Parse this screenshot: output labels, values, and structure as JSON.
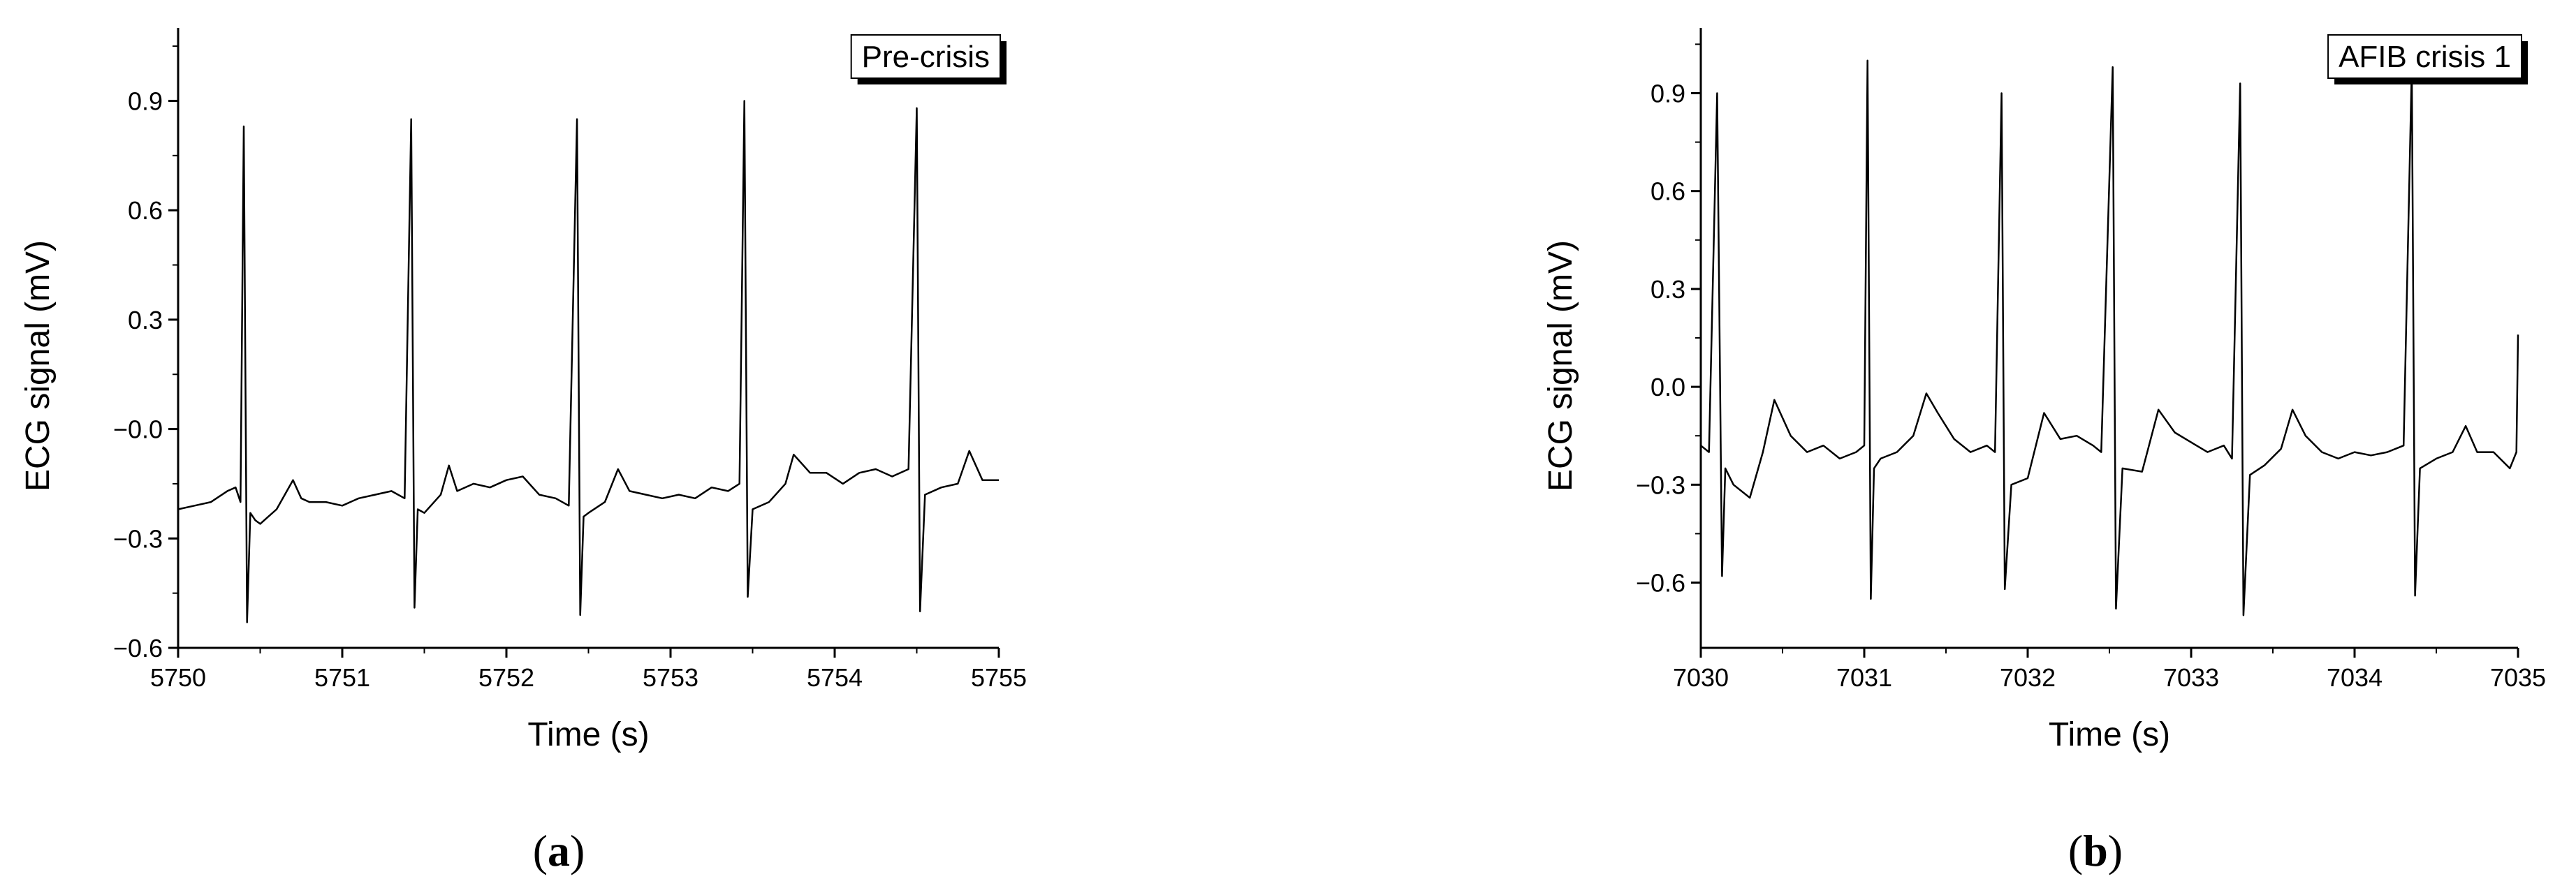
{
  "chart_data": [
    {
      "type": "line",
      "panel_label": "a",
      "legend": "Pre-crisis",
      "xlabel": "Time (s)",
      "ylabel": "ECG signal (mV)",
      "xlim": [
        5750,
        5755
      ],
      "ylim": [
        -0.6,
        1.1
      ],
      "xticks": [
        5750,
        5751,
        5752,
        5753,
        5754,
        5755
      ],
      "yticks": [
        -0.6,
        -0.3,
        0.0,
        0.3,
        0.6,
        0.9
      ],
      "ytick_labels": [
        "−0.6",
        "−0.3",
        "−0.0",
        "0.3",
        "0.6",
        "0.9"
      ],
      "xtick_labels": [
        "5750",
        "5751",
        "5752",
        "5753",
        "5754",
        "5755"
      ],
      "series": [
        {
          "x": [
            5750.0,
            5750.1,
            5750.2,
            5750.3,
            5750.35,
            5750.38,
            5750.4,
            5750.42,
            5750.44,
            5750.47,
            5750.5,
            5750.6,
            5750.7,
            5750.75,
            5750.8,
            5750.9,
            5751.0,
            5751.1,
            5751.2,
            5751.3,
            5751.38,
            5751.42,
            5751.44,
            5751.46,
            5751.5,
            5751.6,
            5751.65,
            5751.7,
            5751.8,
            5751.9,
            5752.0,
            5752.1,
            5752.2,
            5752.3,
            5752.38,
            5752.43,
            5752.45,
            5752.47,
            5752.5,
            5752.6,
            5752.68,
            5752.75,
            5752.85,
            5752.95,
            5753.05,
            5753.15,
            5753.25,
            5753.35,
            5753.42,
            5753.45,
            5753.47,
            5753.5,
            5753.6,
            5753.7,
            5753.75,
            5753.85,
            5753.95,
            5754.05,
            5754.15,
            5754.25,
            5754.35,
            5754.45,
            5754.5,
            5754.52,
            5754.55,
            5754.65,
            5754.75,
            5754.82,
            5754.9,
            5755.0
          ],
          "y": [
            -0.22,
            -0.21,
            -0.2,
            -0.17,
            -0.16,
            -0.2,
            0.83,
            -0.53,
            -0.23,
            -0.25,
            -0.26,
            -0.22,
            -0.14,
            -0.19,
            -0.2,
            -0.2,
            -0.21,
            -0.19,
            -0.18,
            -0.17,
            -0.19,
            0.85,
            -0.49,
            -0.22,
            -0.23,
            -0.18,
            -0.1,
            -0.17,
            -0.15,
            -0.16,
            -0.14,
            -0.13,
            -0.18,
            -0.19,
            -0.21,
            0.85,
            -0.51,
            -0.24,
            -0.23,
            -0.2,
            -0.11,
            -0.17,
            -0.18,
            -0.19,
            -0.18,
            -0.19,
            -0.16,
            -0.17,
            -0.15,
            0.9,
            -0.46,
            -0.22,
            -0.2,
            -0.15,
            -0.07,
            -0.12,
            -0.12,
            -0.15,
            -0.12,
            -0.11,
            -0.13,
            -0.11,
            0.88,
            -0.5,
            -0.18,
            -0.16,
            -0.15,
            -0.06,
            -0.14,
            -0.14
          ]
        }
      ]
    },
    {
      "type": "line",
      "panel_label": "b",
      "legend": "AFIB crisis 1",
      "xlabel": "Time (s)",
      "ylabel": "ECG signal (mV)",
      "xlim": [
        7030,
        7035
      ],
      "ylim": [
        -0.8,
        1.1
      ],
      "xticks": [
        7030,
        7031,
        7032,
        7033,
        7034,
        7035
      ],
      "yticks": [
        -0.6,
        -0.3,
        0.0,
        0.3,
        0.6,
        0.9
      ],
      "ytick_labels": [
        "−0.6",
        "−0.3",
        "0.0",
        "0.3",
        "0.6",
        "0.9"
      ],
      "xtick_labels": [
        "7030",
        "7031",
        "7032",
        "7033",
        "7034",
        "7035"
      ],
      "series": [
        {
          "x": [
            7030.0,
            7030.05,
            7030.1,
            7030.13,
            7030.15,
            7030.2,
            7030.3,
            7030.38,
            7030.45,
            7030.55,
            7030.65,
            7030.75,
            7030.85,
            7030.95,
            7031.0,
            7031.02,
            7031.04,
            7031.06,
            7031.1,
            7031.2,
            7031.3,
            7031.38,
            7031.45,
            7031.55,
            7031.65,
            7031.75,
            7031.8,
            7031.84,
            7031.86,
            7031.9,
            7032.0,
            7032.1,
            7032.2,
            7032.3,
            7032.4,
            7032.45,
            7032.52,
            7032.54,
            7032.58,
            7032.7,
            7032.8,
            7032.9,
            7033.0,
            7033.1,
            7033.2,
            7033.25,
            7033.3,
            7033.32,
            7033.36,
            7033.45,
            7033.55,
            7033.62,
            7033.7,
            7033.8,
            7033.9,
            7034.0,
            7034.1,
            7034.2,
            7034.3,
            7034.35,
            7034.37,
            7034.4,
            7034.5,
            7034.6,
            7034.68,
            7034.75,
            7034.85,
            7034.95,
            7034.99,
            7035.0
          ],
          "y": [
            -0.18,
            -0.2,
            0.9,
            -0.58,
            -0.25,
            -0.3,
            -0.34,
            -0.2,
            -0.04,
            -0.15,
            -0.2,
            -0.18,
            -0.22,
            -0.2,
            -0.18,
            1.0,
            -0.65,
            -0.25,
            -0.22,
            -0.2,
            -0.15,
            -0.02,
            -0.08,
            -0.16,
            -0.2,
            -0.18,
            -0.2,
            0.9,
            -0.62,
            -0.3,
            -0.28,
            -0.08,
            -0.16,
            -0.15,
            -0.18,
            -0.2,
            0.98,
            -0.68,
            -0.25,
            -0.26,
            -0.07,
            -0.14,
            -0.17,
            -0.2,
            -0.18,
            -0.22,
            0.93,
            -0.7,
            -0.27,
            -0.24,
            -0.19,
            -0.07,
            -0.15,
            -0.2,
            -0.22,
            -0.2,
            -0.21,
            -0.2,
            -0.18,
            0.98,
            -0.64,
            -0.25,
            -0.22,
            -0.2,
            -0.12,
            -0.2,
            -0.2,
            -0.25,
            -0.2,
            0.16
          ]
        }
      ]
    }
  ]
}
